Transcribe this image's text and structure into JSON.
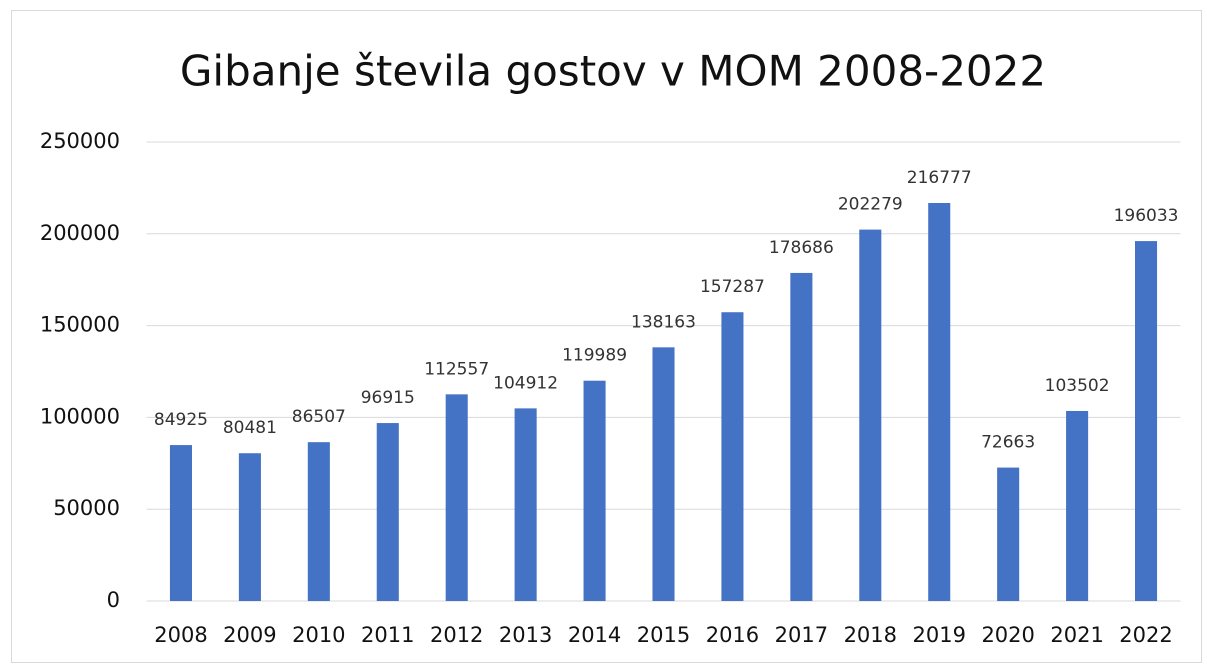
{
  "chart_data": {
    "type": "bar",
    "title": "Gibanje števila gostov v MOM 2008-2022",
    "categories": [
      "2008",
      "2009",
      "2010",
      "2011",
      "2012",
      "2013",
      "2014",
      "2015",
      "2016",
      "2017",
      "2018",
      "2019",
      "2020",
      "2021",
      "2022"
    ],
    "values": [
      84925,
      80481,
      86507,
      96915,
      112557,
      104912,
      119989,
      138163,
      157287,
      178686,
      202279,
      216777,
      72663,
      103502,
      196033
    ],
    "color": "#4472c4",
    "ylim": [
      0,
      250000
    ],
    "yticks": [
      0,
      50000,
      100000,
      150000,
      200000,
      250000
    ],
    "grid": true,
    "data_labels": true
  }
}
